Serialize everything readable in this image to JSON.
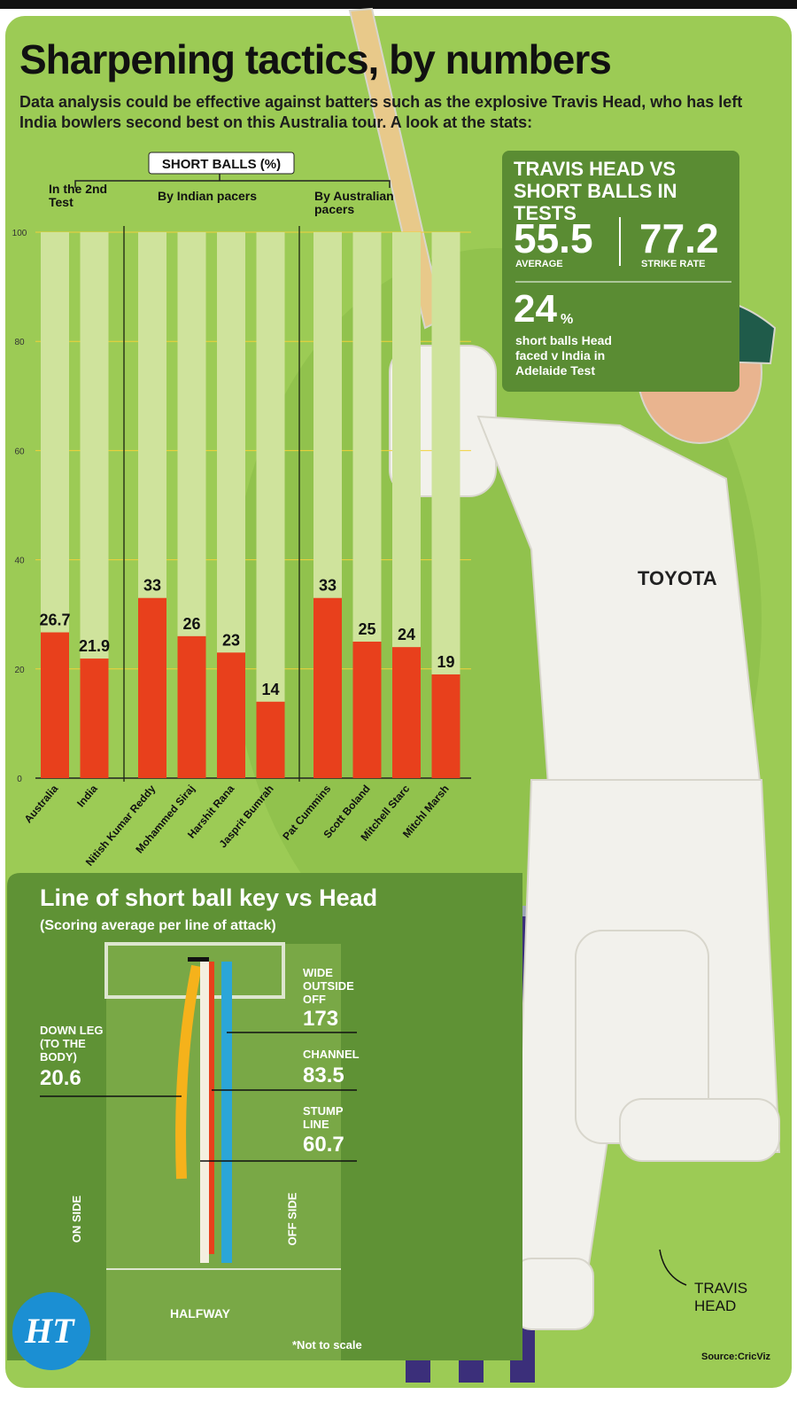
{
  "header": {
    "title": "Sharpening tactics, by numbers",
    "subtitle": "Data analysis could be effective against batters such as the explosive Travis Head, who has left India bowlers second best on this Australia tour. A look at the stats:"
  },
  "chart_data": {
    "type": "bar",
    "title": "SHORT BALLS (%)",
    "groups": [
      "In the 2nd Test",
      "By Indian pacers",
      "By Australian pacers"
    ],
    "categories": [
      "Australia",
      "India",
      "Nitish Kumar Reddy",
      "Mohammed Siraj",
      "Harshit Rana",
      "Jasprit Bumrah",
      "Pat Cummins",
      "Scott Boland",
      "Mitchell Starc",
      "Mitchl Marsh"
    ],
    "values": [
      26.7,
      21.9,
      33,
      26,
      23,
      14,
      33,
      25,
      24,
      19
    ],
    "color": "#e8401c",
    "ylim": [
      0,
      100
    ],
    "yticks": [
      0,
      20,
      40,
      60,
      80,
      100
    ],
    "grid": true
  },
  "stats_panel": {
    "title": "TRAVIS HEAD VS SHORT BALLS IN TESTS",
    "average": {
      "value": "55.5",
      "label": "AVERAGE"
    },
    "strike_rate": {
      "value": "77.2",
      "label": "STRIKE RATE"
    },
    "short_ball_share": {
      "value": "24",
      "unit": "%",
      "label": "short balls Head faced v India in Adelaide Test"
    }
  },
  "line_panel": {
    "title": "Line of short ball key vs Head",
    "subtitle": "(Scoring average per line of attack)",
    "lines": [
      {
        "label": "WIDE OUTSIDE OFF",
        "value": "173"
      },
      {
        "label": "CHANNEL",
        "value": "83.5"
      },
      {
        "label": "STUMP LINE",
        "value": "60.7"
      },
      {
        "label": "DOWN LEG (TO THE BODY)",
        "value": "20.6"
      }
    ],
    "on_side": "ON SIDE",
    "off_side": "OFF SIDE",
    "halfway": "HALFWAY",
    "note": "*Not to scale"
  },
  "player_caption": "TRAVIS HEAD",
  "source": "Source:CricViz",
  "logo": "HT"
}
